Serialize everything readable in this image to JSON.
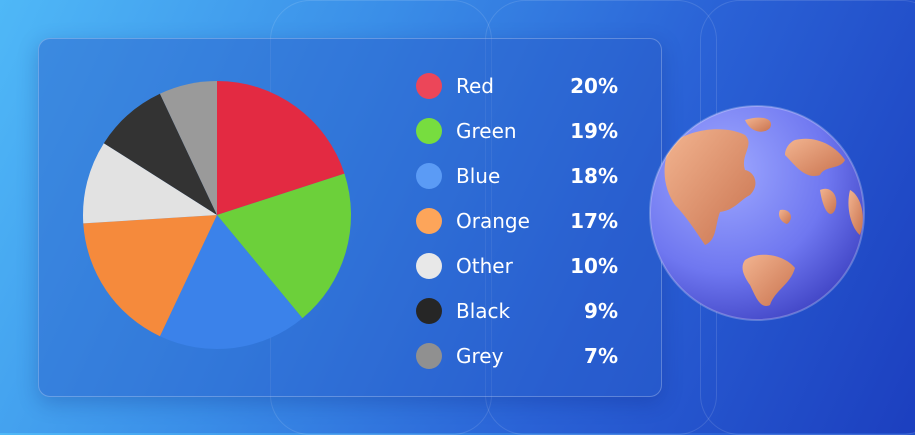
{
  "chart_data": {
    "type": "pie",
    "categories": [
      "Red",
      "Green",
      "Blue",
      "Orange",
      "Other",
      "Black",
      "Grey"
    ],
    "values": [
      20,
      19,
      18,
      17,
      10,
      9,
      7
    ],
    "value_labels": [
      "20%",
      "19%",
      "18%",
      "17%",
      "10%",
      "9%",
      "7%"
    ],
    "colors": [
      "#e32a42",
      "#6cd03a",
      "#3b82ea",
      "#f58a3c",
      "#e2e2e2",
      "#333333",
      "#9a9a9a"
    ],
    "legend_colors": [
      "#ec4659",
      "#77dd3f",
      "#5b9bf5",
      "#fda55a",
      "#e8e8e8",
      "#262626",
      "#909090"
    ],
    "start_angle": "12 o'clock",
    "direction": "clockwise",
    "legend_position": "right"
  },
  "decoration": {
    "globe_icon": "globe-icon"
  }
}
